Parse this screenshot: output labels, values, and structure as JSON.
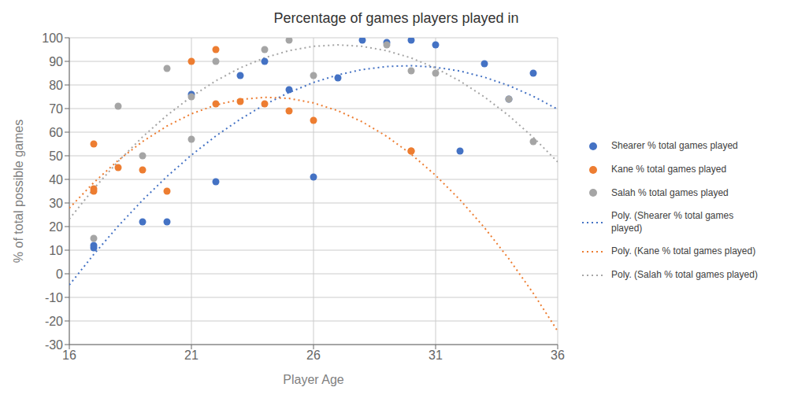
{
  "chart_data": {
    "type": "scatter",
    "title": "Percentage of games players played in",
    "x_label": "Player Age",
    "y_label": "% of total possible games",
    "xlim": [
      16,
      36
    ],
    "ylim": [
      -30,
      100
    ],
    "xticks": [
      16,
      21,
      26,
      31,
      36
    ],
    "yticks": [
      -30,
      -20,
      -10,
      0,
      10,
      20,
      30,
      40,
      50,
      60,
      70,
      80,
      90,
      100
    ],
    "grid": true,
    "legend": "right",
    "series": [
      {
        "name": "Shearer % total games played",
        "type": "scatter",
        "marker": "circle",
        "color": "#4472C4",
        "x": [
          17,
          17,
          19,
          20,
          21,
          22,
          23,
          24,
          25,
          26,
          27,
          28,
          29,
          30,
          31,
          32,
          33,
          34,
          35
        ],
        "values": [
          11,
          12,
          22,
          22,
          76,
          39,
          84,
          90,
          78,
          41,
          83,
          99,
          98,
          99,
          97,
          52,
          89,
          74,
          85
        ]
      },
      {
        "name": "Kane % total games played",
        "type": "scatter",
        "marker": "circle",
        "color": "#ED7D31",
        "x": [
          17,
          17,
          17,
          18,
          19,
          20,
          21,
          22,
          22,
          23,
          24,
          25,
          26,
          30,
          30
        ],
        "values": [
          35,
          36,
          55,
          45,
          44,
          35,
          90,
          95,
          72,
          73,
          72,
          69,
          65,
          52,
          52
        ]
      },
      {
        "name": "Salah % total games played",
        "type": "scatter",
        "marker": "circle",
        "color": "#A5A5A5",
        "x": [
          17,
          18,
          19,
          20,
          21,
          21,
          22,
          24,
          25,
          26,
          29,
          30,
          31,
          34,
          35
        ],
        "values": [
          15,
          71,
          50,
          87,
          57,
          75,
          90,
          95,
          99,
          84,
          97,
          86,
          85,
          74,
          56
        ]
      },
      {
        "name": "Poly. (Shearer % total games\nplayed)",
        "type": "line",
        "line_style": "dotted",
        "color": "#4472C4",
        "x": [
          16,
          17,
          18,
          19,
          20,
          21,
          22,
          23,
          24,
          25,
          26,
          27,
          28,
          29,
          30,
          31,
          32,
          33,
          34,
          35,
          36
        ],
        "values": [
          -4.7358,
          8.212,
          20.1887,
          31.1941,
          41.2285,
          50.2916,
          58.3836,
          65.5044,
          71.6541,
          76.8325,
          81.0399,
          84.2761,
          86.5411,
          87.835,
          88.1576,
          87.5092,
          85.8895,
          83.2987,
          79.7367,
          75.2036,
          69.6992
        ]
      },
      {
        "name": "Poly. (Kane % total games played)",
        "type": "line",
        "line_style": "dotted",
        "color": "#ED7D31",
        "x": [
          16,
          17,
          18,
          19,
          20,
          21,
          22,
          23,
          24,
          25,
          26,
          27,
          28,
          29,
          30,
          31,
          32,
          33,
          34,
          35,
          36
        ],
        "values": [
          27.8154,
          38.6303,
          48.0324,
          56.0219,
          62.5989,
          67.7631,
          71.5146,
          73.8535,
          74.7797,
          74.2933,
          72.3942,
          69.0825,
          64.358,
          58.221,
          50.6713,
          41.7089,
          31.3339,
          19.5462,
          6.3459,
          -8.2672,
          -24.2928
        ]
      },
      {
        "name": "Poly. (Salah % total games played)",
        "type": "line",
        "line_style": "dotted",
        "color": "#A5A5A5",
        "x": [
          16,
          17,
          18,
          19,
          20,
          21,
          22,
          23,
          24,
          25,
          26,
          27,
          28,
          29,
          30,
          31,
          32,
          33,
          34,
          35,
          36
        ],
        "values": [
          23.208,
          36.0218,
          47.6141,
          57.9851,
          67.1345,
          75.0625,
          81.769,
          87.254,
          91.5176,
          94.5596,
          96.3802,
          96.9794,
          96.357,
          94.5131,
          91.4479,
          87.1611,
          81.6529,
          74.9232,
          66.972,
          57.7994,
          47.4052
        ]
      }
    ]
  }
}
